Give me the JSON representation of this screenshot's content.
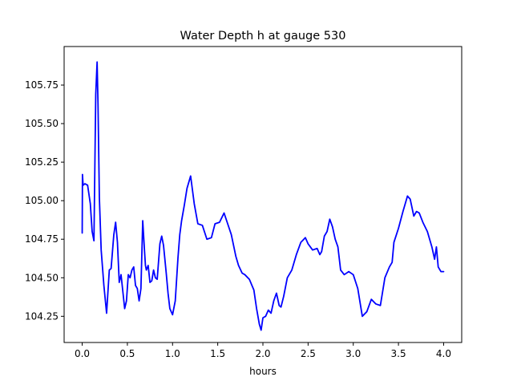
{
  "chart_data": {
    "type": "line",
    "title": "Water Depth h at gauge 530",
    "xlabel": "hours",
    "ylabel": "",
    "xlim": [
      -0.2,
      4.2
    ],
    "ylim": [
      104.08,
      106.0
    ],
    "grid": false,
    "x_ticks": [
      0.0,
      0.5,
      1.0,
      1.5,
      2.0,
      2.5,
      3.0,
      3.5,
      4.0
    ],
    "x_tick_labels": [
      "0.0",
      "0.5",
      "1.0",
      "1.5",
      "2.0",
      "2.5",
      "3.0",
      "3.5",
      "4.0"
    ],
    "y_ticks": [
      104.25,
      104.5,
      104.75,
      105.0,
      105.25,
      105.5,
      105.75
    ],
    "y_tick_labels": [
      "104.25",
      "104.50",
      "104.75",
      "105.00",
      "105.25",
      "105.50",
      "105.75"
    ],
    "series": [
      {
        "color": "#0000ff",
        "x": [
          0.0,
          0.003,
          0.01,
          0.03,
          0.06,
          0.09,
          0.11,
          0.13,
          0.15,
          0.165,
          0.175,
          0.19,
          0.21,
          0.24,
          0.27,
          0.3,
          0.32,
          0.35,
          0.37,
          0.39,
          0.41,
          0.43,
          0.45,
          0.47,
          0.49,
          0.51,
          0.53,
          0.55,
          0.57,
          0.59,
          0.61,
          0.63,
          0.65,
          0.67,
          0.69,
          0.7,
          0.71,
          0.73,
          0.75,
          0.77,
          0.79,
          0.81,
          0.83,
          0.86,
          0.88,
          0.9,
          0.91,
          0.93,
          0.95,
          0.97,
          1.0,
          1.03,
          1.06,
          1.08,
          1.1,
          1.13,
          1.16,
          1.2,
          1.24,
          1.28,
          1.33,
          1.38,
          1.43,
          1.47,
          1.52,
          1.57,
          1.61,
          1.65,
          1.7,
          1.73,
          1.77,
          1.8,
          1.85,
          1.9,
          1.93,
          1.96,
          1.98,
          2.0,
          2.03,
          2.06,
          2.09,
          2.12,
          2.15,
          2.18,
          2.2,
          2.23,
          2.27,
          2.32,
          2.37,
          2.42,
          2.47,
          2.5,
          2.55,
          2.6,
          2.63,
          2.65,
          2.68,
          2.71,
          2.74,
          2.77,
          2.8,
          2.83,
          2.86,
          2.9,
          2.95,
          3.0,
          3.05,
          3.1,
          3.15,
          3.2,
          3.25,
          3.3,
          3.35,
          3.4,
          3.43,
          3.45,
          3.5,
          3.55,
          3.6,
          3.63,
          3.67,
          3.7,
          3.73,
          3.77,
          3.82,
          3.87,
          3.9,
          3.92,
          3.94,
          3.97,
          4.0
        ],
        "y": [
          104.79,
          105.17,
          105.1,
          105.11,
          105.1,
          104.98,
          104.8,
          104.74,
          105.69,
          105.9,
          105.63,
          105.02,
          104.68,
          104.45,
          104.27,
          104.55,
          104.56,
          104.78,
          104.86,
          104.73,
          104.47,
          104.52,
          104.41,
          104.3,
          104.35,
          104.52,
          104.5,
          104.55,
          104.57,
          104.45,
          104.43,
          104.35,
          104.43,
          104.87,
          104.67,
          104.58,
          104.55,
          104.58,
          104.47,
          104.48,
          104.55,
          104.5,
          104.49,
          104.72,
          104.77,
          104.71,
          104.65,
          104.53,
          104.4,
          104.3,
          104.26,
          104.35,
          104.63,
          104.78,
          104.87,
          104.97,
          105.08,
          105.16,
          104.98,
          104.85,
          104.84,
          104.75,
          104.76,
          104.85,
          104.86,
          104.92,
          104.85,
          104.78,
          104.64,
          104.58,
          104.53,
          104.52,
          104.49,
          104.42,
          104.3,
          104.2,
          104.16,
          104.24,
          104.25,
          104.29,
          104.27,
          104.35,
          104.4,
          104.32,
          104.31,
          104.38,
          104.5,
          104.55,
          104.65,
          104.73,
          104.76,
          104.72,
          104.68,
          104.69,
          104.65,
          104.67,
          104.77,
          104.8,
          104.88,
          104.83,
          104.75,
          104.7,
          104.55,
          104.52,
          104.54,
          104.52,
          104.43,
          104.25,
          104.28,
          104.36,
          104.33,
          104.32,
          104.5,
          104.57,
          104.6,
          104.73,
          104.82,
          104.93,
          105.03,
          105.01,
          104.9,
          104.93,
          104.92,
          104.86,
          104.8,
          104.7,
          104.62,
          104.7,
          104.57,
          104.54,
          104.54
        ]
      }
    ]
  }
}
